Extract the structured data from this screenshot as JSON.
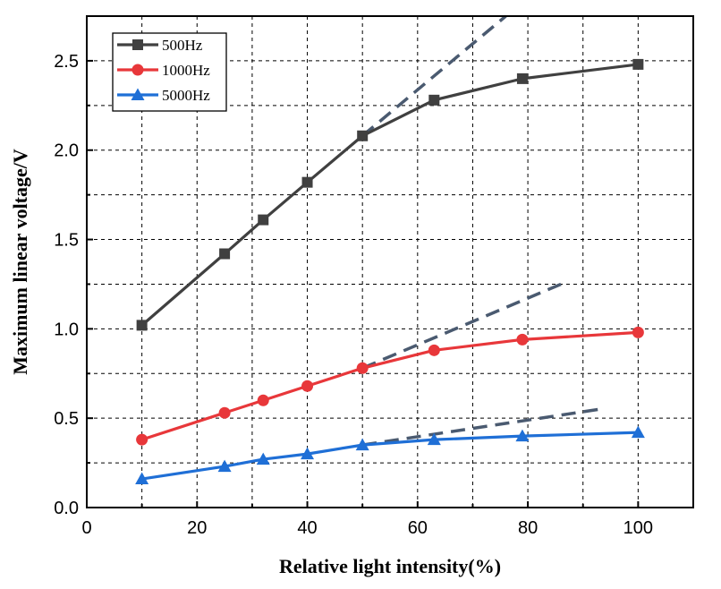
{
  "chart_data": {
    "type": "line",
    "xlabel": "Relative light intensity(%)",
    "ylabel": "Maximum linear voltage/V",
    "xlim": [
      0,
      110
    ],
    "ylim": [
      0,
      2.75
    ],
    "x_ticks": [
      0,
      20,
      40,
      60,
      80,
      100
    ],
    "y_ticks": [
      0.0,
      0.5,
      1.0,
      1.5,
      2.0,
      2.5
    ],
    "x_tick_labels": [
      "0",
      "20",
      "40",
      "60",
      "80",
      "100"
    ],
    "y_tick_labels": [
      "0.0",
      "0.5",
      "1.0",
      "1.5",
      "2.0",
      "2.5"
    ],
    "grid": "dashed",
    "legend_position": "top-left",
    "series": [
      {
        "name": "500Hz",
        "color": "#404040",
        "marker": "square",
        "x": [
          10,
          25,
          32,
          40,
          50,
          63,
          79,
          100
        ],
        "y": [
          1.02,
          1.42,
          1.61,
          1.82,
          2.08,
          2.28,
          2.4,
          2.48
        ]
      },
      {
        "name": "1000Hz",
        "color": "#e8373a",
        "marker": "circle",
        "x": [
          10,
          25,
          32,
          40,
          50,
          63,
          79,
          100
        ],
        "y": [
          0.38,
          0.53,
          0.6,
          0.68,
          0.78,
          0.88,
          0.94,
          0.98
        ]
      },
      {
        "name": "5000Hz",
        "color": "#1f6fd6",
        "marker": "triangle",
        "x": [
          10,
          25,
          32,
          40,
          50,
          63,
          79,
          100
        ],
        "y": [
          0.16,
          0.23,
          0.27,
          0.3,
          0.35,
          0.38,
          0.4,
          0.42
        ]
      }
    ],
    "extrapolation_lines": [
      {
        "color": "#4a5a70",
        "x": [
          50,
          76
        ],
        "y": [
          2.08,
          2.75
        ]
      },
      {
        "color": "#4a5a70",
        "x": [
          50,
          86
        ],
        "y": [
          0.78,
          1.25
        ]
      },
      {
        "color": "#4a5a70",
        "x": [
          50,
          93
        ],
        "y": [
          0.35,
          0.55
        ]
      }
    ]
  }
}
